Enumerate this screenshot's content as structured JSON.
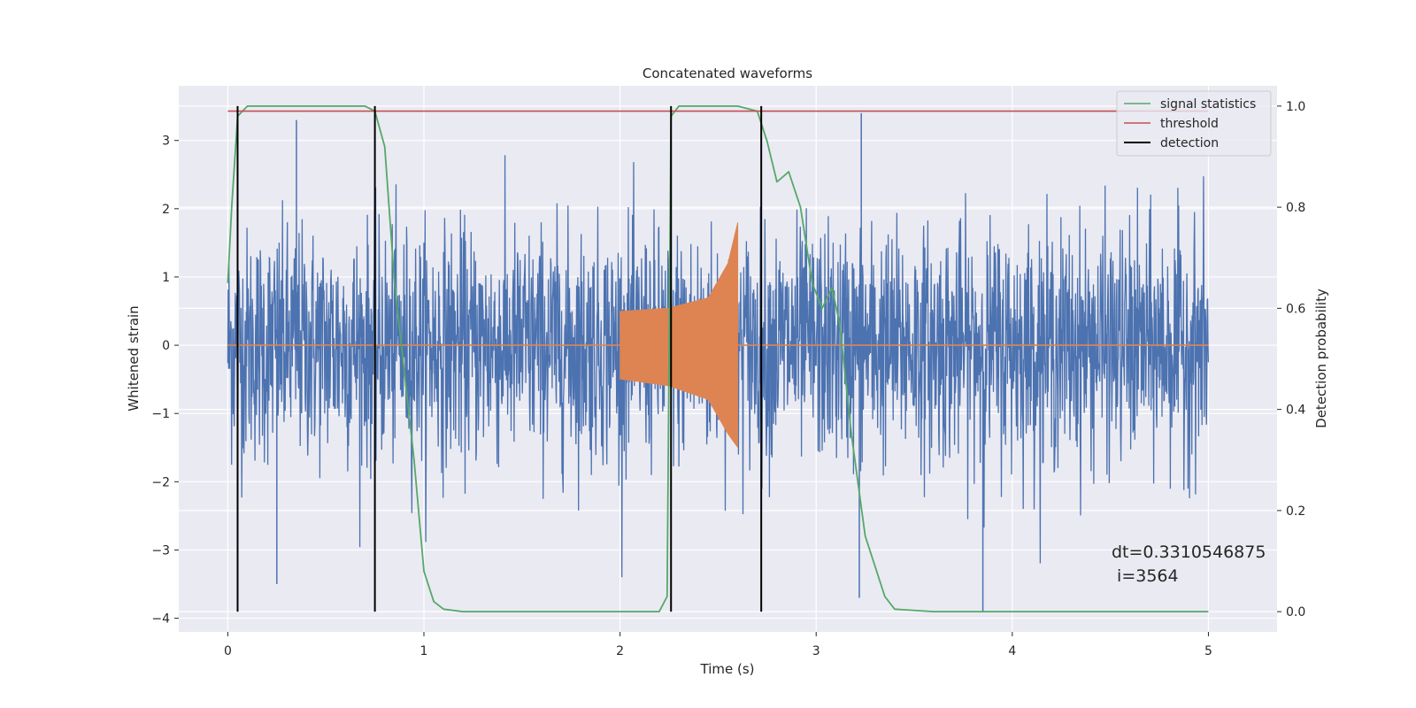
{
  "chart_data": {
    "type": "line",
    "title": "Concatenated waveforms",
    "xlabel": "Time (s)",
    "ylabel": "Whitened strain",
    "ylabel_right": "Detection probability",
    "xlim": [
      -0.25,
      5.35
    ],
    "ylim": [
      -4.2,
      3.8
    ],
    "ylim_right": [
      -0.04,
      1.04
    ],
    "x_ticks": [
      "0",
      "1",
      "2",
      "3",
      "4",
      "5"
    ],
    "x_tick_values": [
      0,
      1,
      2,
      3,
      4,
      5
    ],
    "y_ticks": [
      "−4",
      "−3",
      "−2",
      "−1",
      "0",
      "1",
      "2",
      "3"
    ],
    "y_tick_values": [
      -4,
      -3,
      -2,
      -1,
      0,
      1,
      2,
      3
    ],
    "y_right_ticks": [
      "0.0",
      "0.2",
      "0.4",
      "0.6",
      "0.8",
      "1.0"
    ],
    "y_right_tick_values": [
      0.0,
      0.2,
      0.4,
      0.6,
      0.8,
      1.0
    ],
    "grid": true,
    "legend_position": "top-right",
    "legend": [
      "signal statistics",
      "threshold",
      "detection"
    ],
    "colors": {
      "noise": "#4c72b0",
      "injection": "#dd8452",
      "signal_statistics": "#55a868",
      "threshold": "#c44e52",
      "detection": "#000000",
      "background": "#eaeaf2",
      "grid": "#ffffff"
    },
    "series": [
      {
        "name": "",
        "kind": "whitened noise",
        "axis": "left",
        "x_range": [
          0,
          5
        ],
        "envelope_abs": 2.5,
        "peak_values": [
          3.3,
          -3.5,
          3.4,
          -3.7,
          -3.9
        ]
      },
      {
        "name": "",
        "kind": "injected chirp",
        "axis": "left",
        "x": [
          2.0,
          2.25,
          2.45,
          2.55,
          2.6,
          2.62
        ],
        "upper": [
          0.5,
          0.55,
          0.7,
          1.2,
          1.8,
          0.0
        ],
        "lower": [
          -0.5,
          -0.6,
          -0.8,
          -1.3,
          -1.5,
          0.0
        ]
      },
      {
        "name": "signal statistics",
        "axis": "right",
        "x": [
          0,
          0.02,
          0.05,
          0.1,
          0.5,
          0.7,
          0.75,
          0.8,
          0.85,
          0.95,
          1.0,
          1.05,
          1.1,
          1.2,
          2.0,
          2.2,
          2.24,
          2.26,
          2.3,
          2.6,
          2.7,
          2.75,
          2.8,
          2.86,
          2.92,
          2.98,
          3.03,
          3.08,
          3.12,
          3.18,
          3.25,
          3.35,
          3.4,
          3.6,
          5.0
        ],
        "y": [
          0.65,
          0.8,
          0.98,
          1.0,
          1.0,
          1.0,
          0.99,
          0.92,
          0.65,
          0.3,
          0.08,
          0.02,
          0.005,
          0.0,
          0.0,
          0.0,
          0.03,
          0.98,
          1.0,
          1.0,
          0.99,
          0.93,
          0.85,
          0.87,
          0.8,
          0.65,
          0.6,
          0.64,
          0.57,
          0.35,
          0.15,
          0.03,
          0.005,
          0.0,
          0.0
        ]
      },
      {
        "name": "threshold",
        "axis": "right",
        "x": [
          0,
          5
        ],
        "y": [
          0.99,
          0.99
        ]
      },
      {
        "name": "detection",
        "axis": "right",
        "vlines_x": [
          0.05,
          0.75,
          2.26,
          2.72
        ],
        "y_range": [
          0.0,
          1.0
        ]
      }
    ],
    "annotation": {
      "line1": "dt=0.3310546875",
      "line2": " i=3564"
    }
  }
}
